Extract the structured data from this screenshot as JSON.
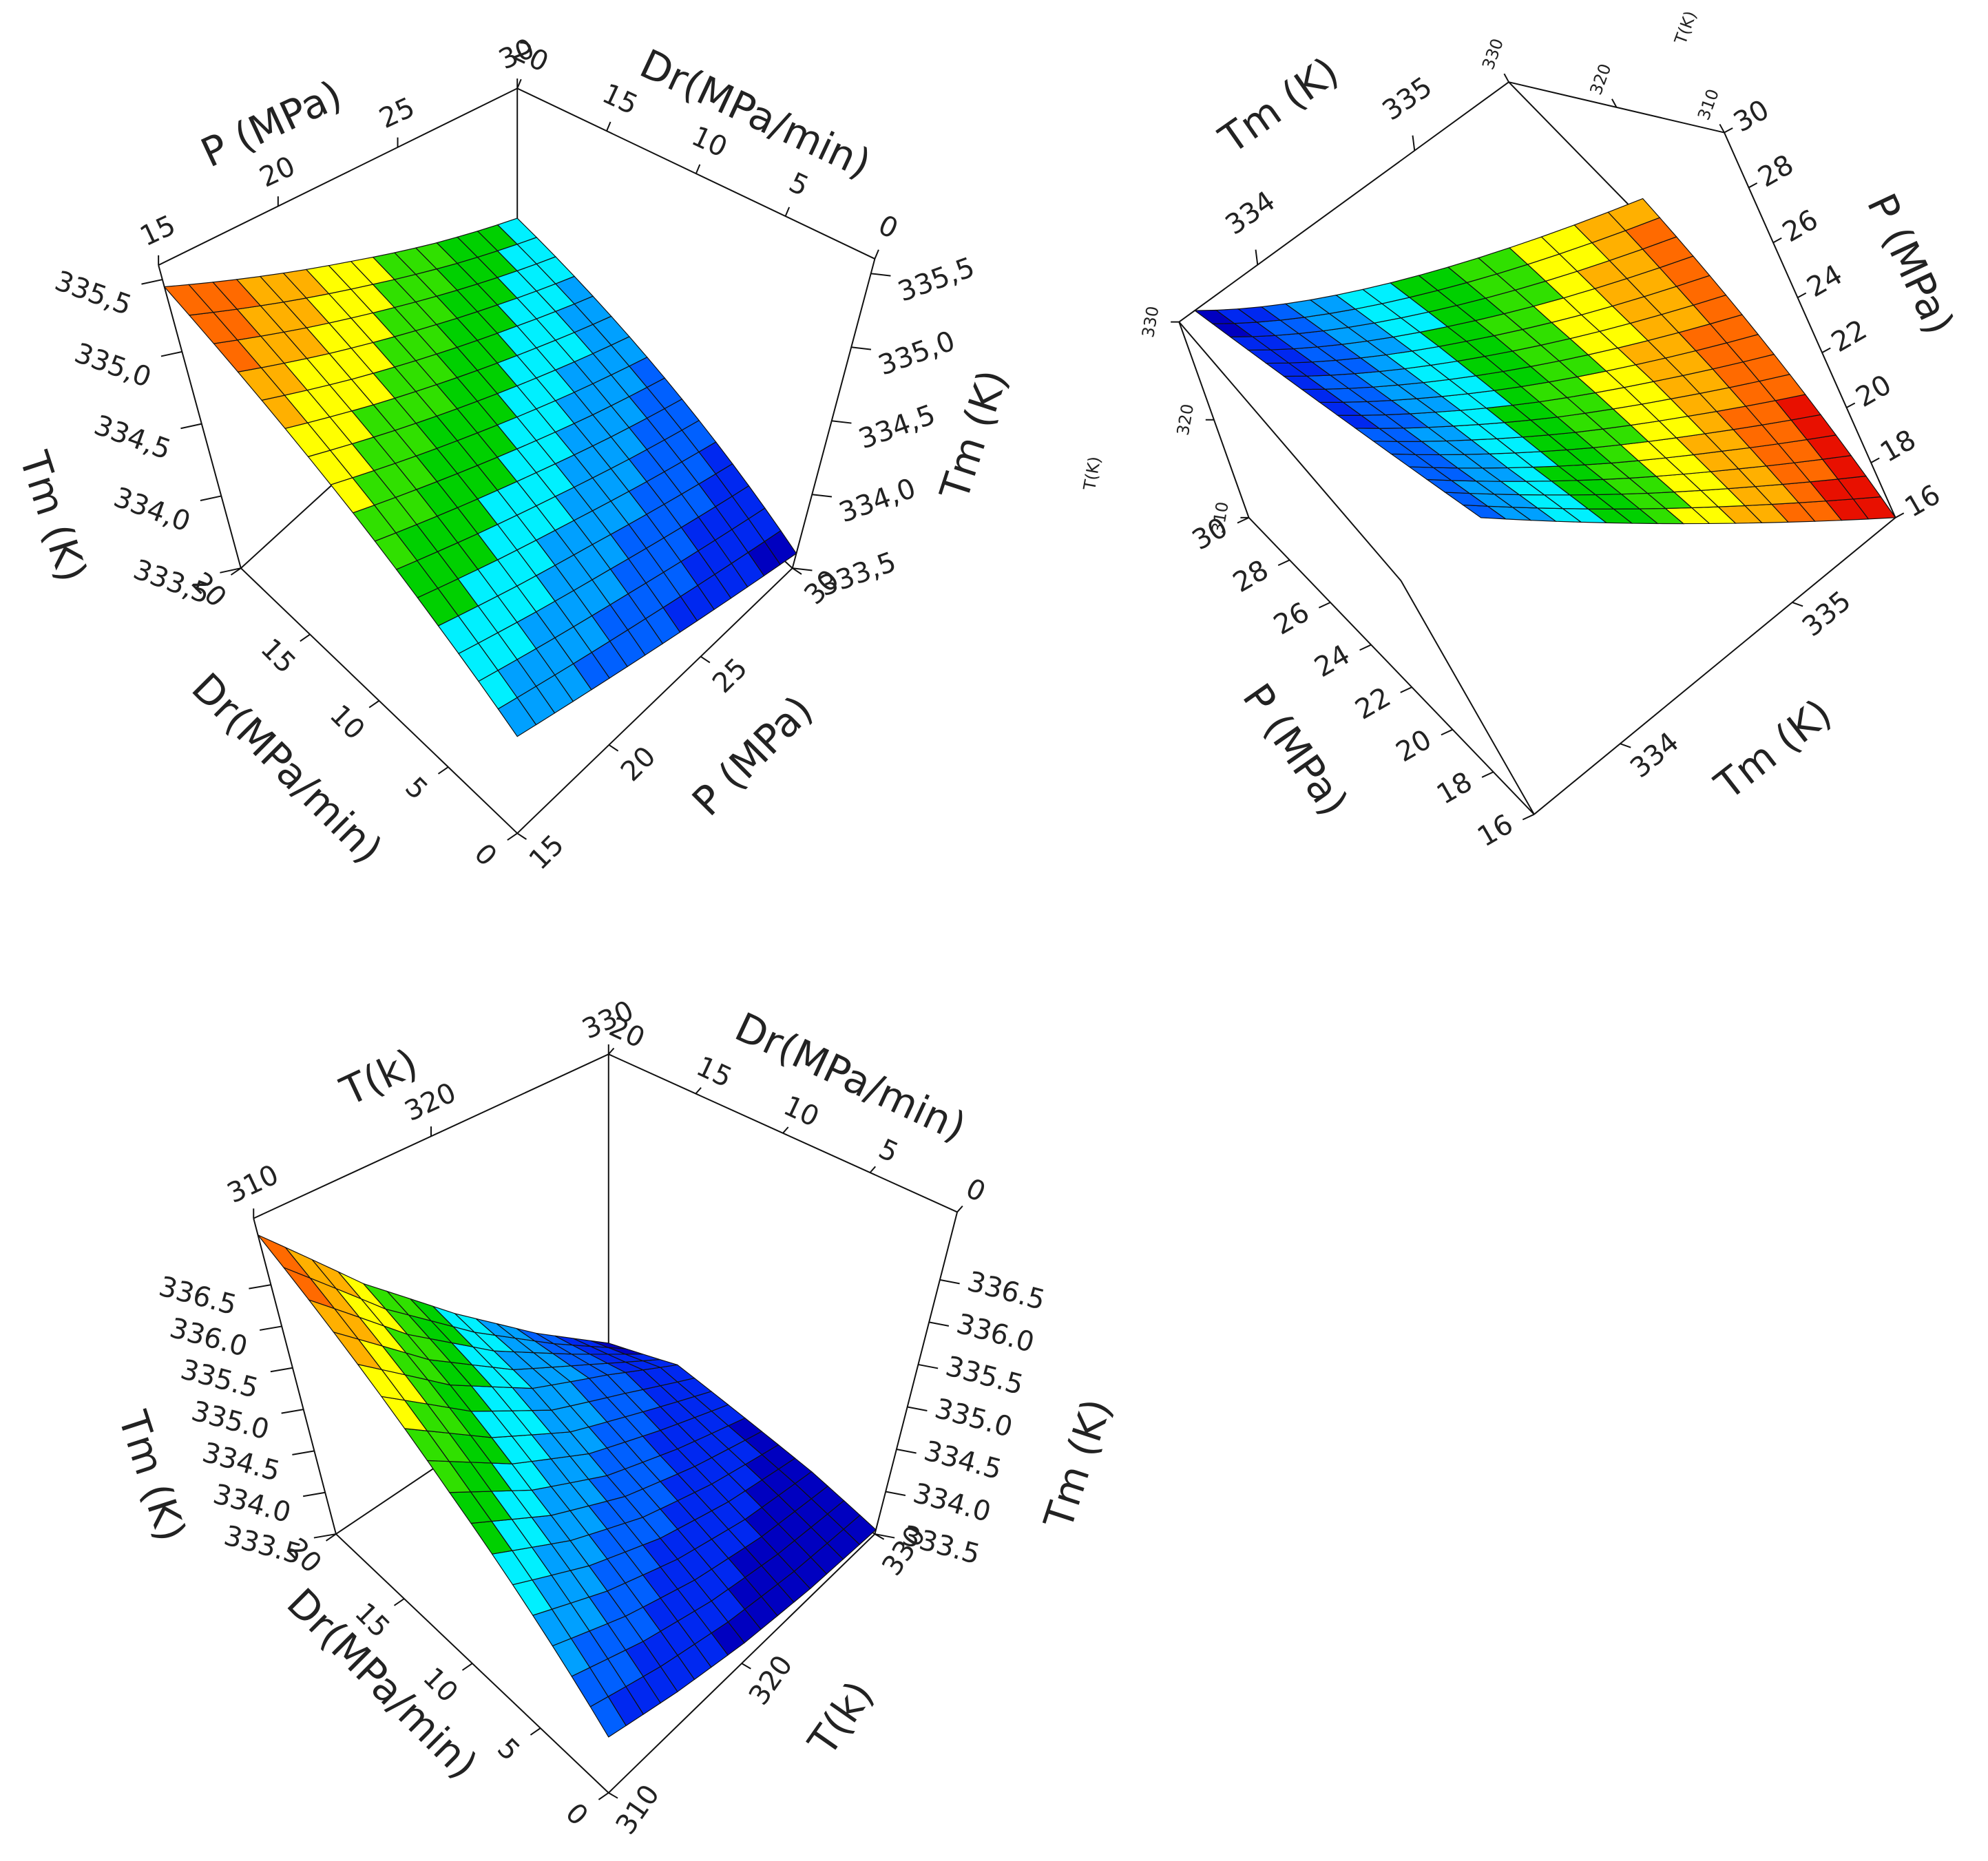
{
  "chart_data": [
    {
      "type": "surface",
      "xlabel": "Dr(MPa/min)",
      "ylabel": "P (MPa)",
      "zlabel": "Tm (K)",
      "xlim": [
        0,
        20
      ],
      "xticks": [
        0,
        5,
        10,
        15,
        20
      ],
      "ylim": [
        15,
        30
      ],
      "yticks": [
        15,
        20,
        25,
        30
      ],
      "zlim": [
        333.5,
        335.6
      ],
      "zticks": [
        {
          "value": 333.5,
          "label": "333,5"
        },
        {
          "value": 334,
          "label": "334,0"
        },
        {
          "value": 334.5,
          "label": "334,5"
        },
        {
          "value": 335,
          "label": "335,0"
        },
        {
          "value": 335.5,
          "label": "335,5"
        }
      ],
      "x": [
        0,
        5,
        10,
        15,
        20
      ],
      "y": [
        15,
        18.75,
        22.5,
        26.25,
        30
      ],
      "z": [
        [
          334.2,
          334.05,
          333.9,
          333.75,
          333.6
        ],
        [
          334.51,
          334.33,
          334.16,
          333.98,
          333.8
        ],
        [
          334.83,
          334.62,
          334.41,
          334.2,
          334.0
        ],
        [
          335.14,
          334.9,
          334.67,
          334.44,
          334.2
        ],
        [
          335.45,
          335.19,
          334.93,
          334.66,
          334.4
        ]
      ],
      "colormap": [
        "#0000c0",
        "#0028f0",
        "#0060ff",
        "#00a0ff",
        "#00f0ff",
        "#00d000",
        "#30e000",
        "#ffff00",
        "#ffb000",
        "#ff6a00",
        "#e81000"
      ]
    },
    {
      "type": "surface",
      "xlabel": "P (MPa)",
      "ylabel": "T(K)",
      "zlabel": "Tm (K)",
      "xlim": [
        16,
        30
      ],
      "xticks": [
        16,
        18,
        20,
        22,
        24,
        26,
        28,
        30
      ],
      "ylim": [
        310,
        330
      ],
      "yticks": [
        310,
        320,
        330
      ],
      "zlim": [
        333.5,
        335.6
      ],
      "zticks": [
        334,
        335
      ],
      "x": [
        16,
        19.5,
        23,
        26.5,
        30
      ],
      "y": [
        310,
        315,
        320,
        325,
        330
      ],
      "z": [
        [
          335.6,
          335.2,
          334.8,
          334.4,
          334.0
        ],
        [
          335.51,
          335.11,
          334.7,
          334.3,
          333.9
        ],
        [
          335.42,
          335.02,
          334.61,
          334.21,
          333.8
        ],
        [
          335.33,
          334.92,
          334.52,
          334.11,
          333.7
        ],
        [
          335.24,
          334.83,
          334.42,
          334.01,
          333.6
        ]
      ],
      "colormap": [
        "#0000c0",
        "#0028f0",
        "#0060ff",
        "#00a0ff",
        "#00f0ff",
        "#00d000",
        "#30e000",
        "#ffff00",
        "#ffb000",
        "#ff6a00",
        "#e81000"
      ]
    },
    {
      "type": "surface",
      "xlabel": "Dr(MPa/min)",
      "ylabel": "T(k)",
      "zlabel": "Tm (K)",
      "xlim": [
        0,
        20
      ],
      "xticks": [
        0,
        5,
        10,
        15,
        20
      ],
      "ylim": [
        310,
        330
      ],
      "yticks": [
        310,
        320,
        330
      ],
      "zlim": [
        333.5,
        337.3
      ],
      "zticks": [
        333.5,
        {
          "value": 334,
          "label": "334.0"
        },
        334.5,
        {
          "value": 335,
          "label": "335.0"
        },
        335.5,
        {
          "value": 336,
          "label": "336.0"
        },
        336.5
      ],
      "x": [
        0,
        5,
        10,
        15,
        20
      ],
      "y": [
        310,
        315,
        320,
        325,
        330
      ],
      "z": [
        [
          334.2,
          333.95,
          333.75,
          333.62,
          333.55
        ],
        [
          334.9,
          334.45,
          334.1,
          333.85,
          333.7
        ],
        [
          335.6,
          334.95,
          334.45,
          334.1,
          333.8
        ],
        [
          336.35,
          335.5,
          334.85,
          334.4,
          333.9
        ],
        [
          337.1,
          336.0,
          335.1,
          334.3,
          333.6
        ]
      ],
      "colormap": [
        "#0000c0",
        "#0028f0",
        "#0060ff",
        "#00a0ff",
        "#00f0ff",
        "#00d000",
        "#30e000",
        "#ffff00",
        "#ffb000",
        "#ff6a00",
        "#e81000"
      ]
    }
  ]
}
